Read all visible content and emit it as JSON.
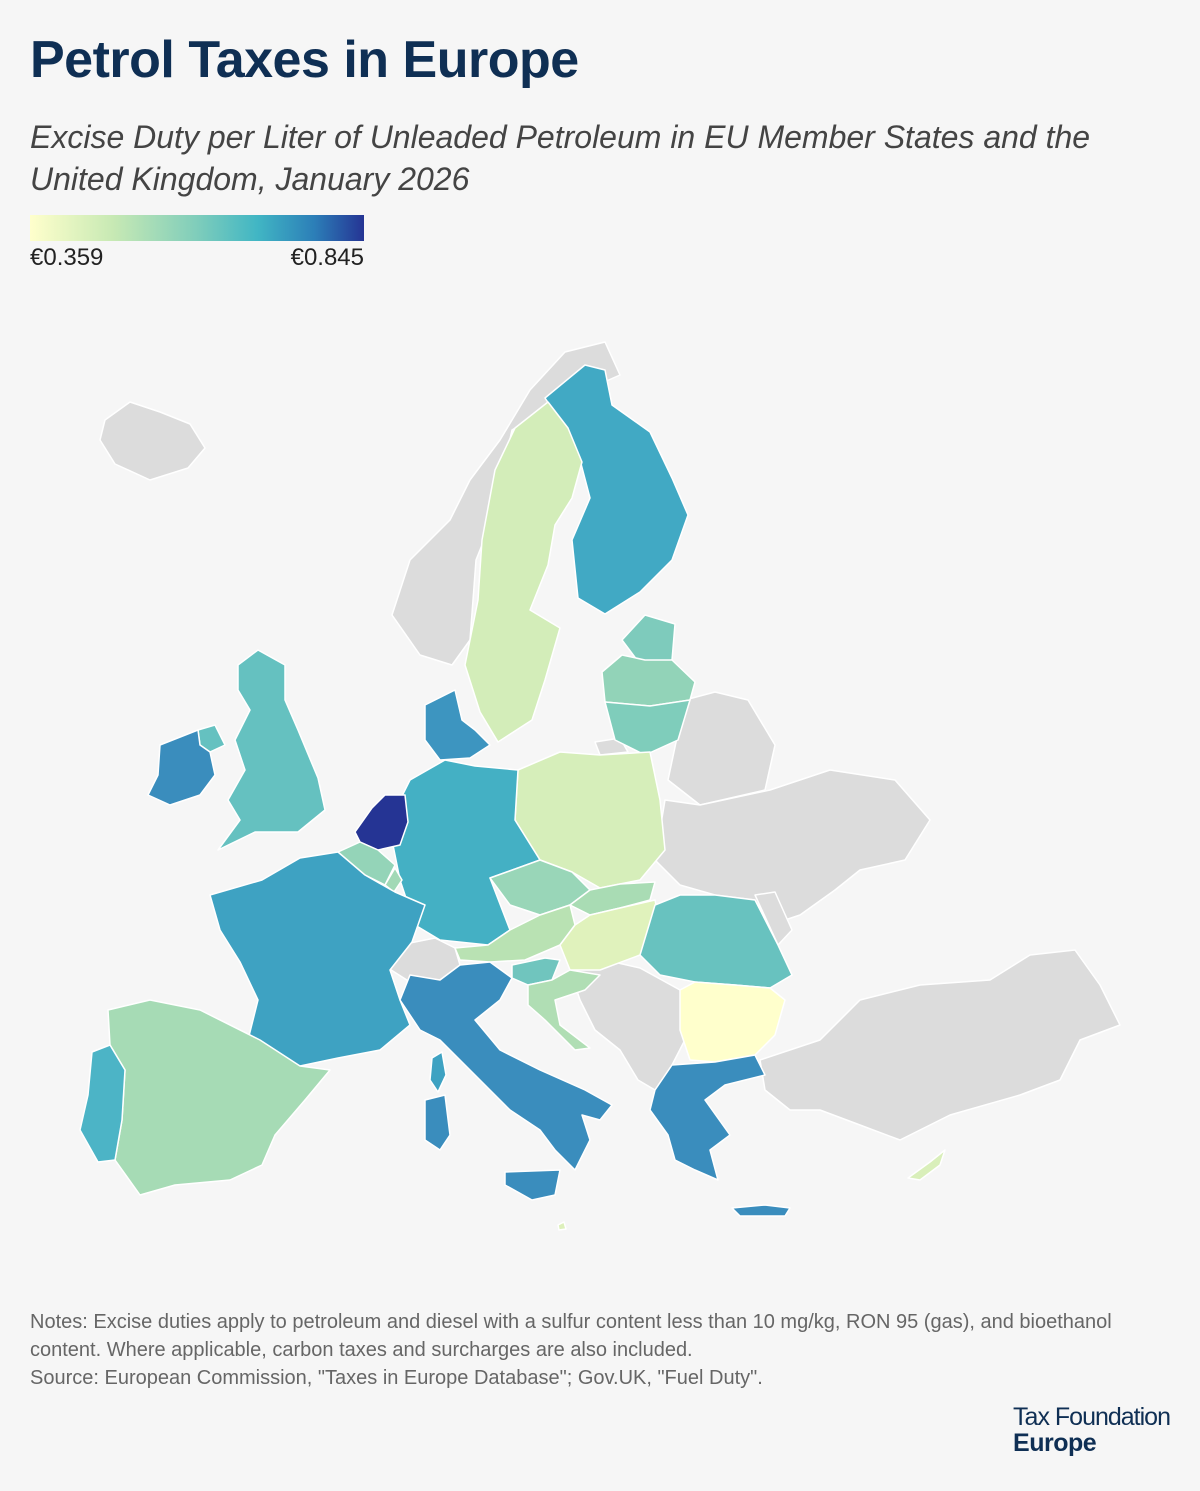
{
  "title": "Petrol Taxes in Europe",
  "subtitle": "Excise Duty per Liter of Unleaded Petroleum in EU Member States and the United Kingdom, January 2026",
  "legend": {
    "min_label": "€0.359",
    "max_label": "€0.845",
    "min_value": 0.359,
    "max_value": 0.845,
    "colors": [
      "#ffffcc",
      "#c7e9b4",
      "#7fcdbb",
      "#41b6c4",
      "#2c7fb8",
      "#253494"
    ]
  },
  "map_data": {
    "no_data_color": "#dcdcdc",
    "regions": [
      {
        "name": "Netherlands",
        "color": "#253494"
      },
      {
        "name": "Italy",
        "color": "#3a8dbd"
      },
      {
        "name": "Greece",
        "color": "#3a8dbd"
      },
      {
        "name": "Ireland",
        "color": "#3a8dbd"
      },
      {
        "name": "Denmark",
        "color": "#3d95c0"
      },
      {
        "name": "France",
        "color": "#3ea2c2"
      },
      {
        "name": "Finland",
        "color": "#41a9c4"
      },
      {
        "name": "Germany",
        "color": "#44b0c4"
      },
      {
        "name": "Portugal",
        "color": "#4cb4c6"
      },
      {
        "name": "United Kingdom",
        "color": "#65c1c0"
      },
      {
        "name": "Romania",
        "color": "#68c2bf"
      },
      {
        "name": "Slovenia",
        "color": "#70c5be"
      },
      {
        "name": "Estonia",
        "color": "#7ecbbc"
      },
      {
        "name": "Lithuania",
        "color": "#7fcdbb"
      },
      {
        "name": "Latvia",
        "color": "#92d3b8"
      },
      {
        "name": "Belgium",
        "color": "#94d4b8"
      },
      {
        "name": "Czechia",
        "color": "#99d6b8"
      },
      {
        "name": "Luxembourg",
        "color": "#a2d9b6"
      },
      {
        "name": "Spain",
        "color": "#a6dbb5"
      },
      {
        "name": "Slovakia",
        "color": "#a9dcb4"
      },
      {
        "name": "Croatia",
        "color": "#b0deb4"
      },
      {
        "name": "Austria",
        "color": "#b9e2b3"
      },
      {
        "name": "Sweden",
        "color": "#d3edb9"
      },
      {
        "name": "Poland",
        "color": "#d6eeba"
      },
      {
        "name": "Cyprus",
        "color": "#d9efba"
      },
      {
        "name": "Hungary",
        "color": "#e0f2bc"
      },
      {
        "name": "Malta",
        "color": "#ddf0bb"
      },
      {
        "name": "Bulgaria",
        "color": "#ffffcc"
      }
    ]
  },
  "notes": {
    "line1": "Notes: Excise duties apply to petroleum and diesel with a sulfur content less than 10 mg/kg, RON 95 (gas), and bioethanol content. Where applicable, carbon taxes and surcharges are also included.",
    "source": "Source: European Commission, \"Taxes in Europe Database\"; Gov.UK, \"Fuel Duty\"."
  },
  "logo": {
    "line1": "Tax Foundation",
    "line2": "Europe"
  }
}
